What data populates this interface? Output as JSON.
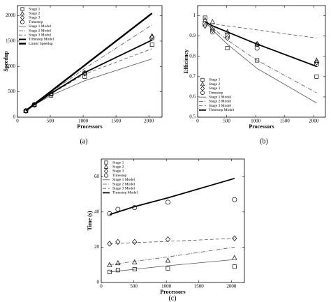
{
  "chart_data": [
    {
      "type": "line",
      "caption": "(a)",
      "x_label": "Processors",
      "y_label": "Speedup",
      "x": [
        128,
        256,
        512,
        1024,
        2048
      ],
      "xlim": [
        0,
        2200
      ],
      "xticks": [
        0,
        500,
        1000,
        1500,
        2000
      ],
      "ylim": [
        0,
        2200
      ],
      "yticks": [
        0,
        500,
        1000,
        1500,
        2000
      ],
      "legend": "upper left",
      "series": [
        {
          "name": "Stage 1",
          "color": "#000000",
          "marker": "square",
          "values": [
            125,
            240,
            430,
            800,
            1430
          ]
        },
        {
          "name": "Stage 2",
          "color": "#000000",
          "marker": "triangle",
          "values": [
            128,
            250,
            470,
            870,
            1600
          ]
        },
        {
          "name": "Stage 3",
          "color": "#000000",
          "marker": "diamond",
          "values": [
            126,
            245,
            460,
            860,
            1580
          ]
        },
        {
          "name": "Timestep",
          "color": "#000000",
          "marker": "circle",
          "values": [
            125,
            245,
            460,
            870,
            1560
          ]
        },
        {
          "name": "Stage 1 Model",
          "color": "#555555",
          "line": "solid",
          "linewidth": 0.8,
          "values": [
            125,
            240,
            430,
            720,
            1150
          ]
        },
        {
          "name": "Stage 2 Model",
          "color": "#555555",
          "line": "dashdot",
          "linewidth": 0.8,
          "values": [
            127,
            252,
            490,
            960,
            1820
          ]
        },
        {
          "name": "Stage 3 Model",
          "color": "#555555",
          "line": "dashed",
          "linewidth": 0.8,
          "values": [
            126,
            246,
            460,
            850,
            1350
          ]
        },
        {
          "name": "Timestep Model",
          "color": "#000000",
          "line": "solid",
          "linewidth": 1.8,
          "values": [
            125,
            244,
            470,
            880,
            1520
          ]
        },
        {
          "name": "Linear Speedup",
          "color": "#000000",
          "line": "solid",
          "linewidth": 2.4,
          "values": [
            128,
            256,
            512,
            1024,
            2048
          ]
        }
      ]
    },
    {
      "type": "line",
      "caption": "(b)",
      "x_label": "Processors",
      "y_label": "Efficiency",
      "x": [
        128,
        256,
        512,
        1024,
        2048
      ],
      "xlim": [
        0,
        2200
      ],
      "xticks": [
        0,
        500,
        1000,
        1500,
        2000
      ],
      "ylim": [
        0.5,
        1.05
      ],
      "yticks": [
        0.5,
        0.6,
        0.7,
        0.8,
        0.9,
        1
      ],
      "legend": "lower left",
      "series": [
        {
          "name": "Stage 1",
          "color": "#000000",
          "marker": "square",
          "values": [
            0.99,
            0.94,
            0.84,
            0.78,
            0.7
          ]
        },
        {
          "name": "Stage 2",
          "color": "#000000",
          "marker": "triangle",
          "values": [
            0.98,
            0.97,
            0.92,
            0.86,
            0.78
          ]
        },
        {
          "name": "Stage 3",
          "color": "#000000",
          "marker": "diamond",
          "values": [
            0.95,
            0.93,
            0.89,
            0.86,
            0.77
          ]
        },
        {
          "name": "Timestep",
          "color": "#000000",
          "marker": "circle",
          "values": [
            0.96,
            0.92,
            0.9,
            0.84,
            0.76
          ]
        },
        {
          "name": "Stage 1 Model",
          "color": "#555555",
          "line": "solid",
          "linewidth": 0.8,
          "values": [
            0.97,
            0.93,
            0.86,
            0.74,
            0.57
          ]
        },
        {
          "name": "Stage 2 Model",
          "color": "#555555",
          "line": "dashdot",
          "linewidth": 0.8,
          "values": [
            0.97,
            0.94,
            0.88,
            0.78,
            0.62
          ]
        },
        {
          "name": "Stage 3 Model",
          "color": "#555555",
          "line": "dashed",
          "linewidth": 0.8,
          "values": [
            0.97,
            0.96,
            0.95,
            0.93,
            0.89
          ]
        },
        {
          "name": "Timestep Model",
          "color": "#000000",
          "line": "solid",
          "linewidth": 1.8,
          "values": [
            0.97,
            0.95,
            0.92,
            0.86,
            0.75
          ]
        }
      ]
    },
    {
      "type": "line",
      "caption": "(c)",
      "x_label": "Processors",
      "y_label": "Time (s)",
      "x": [
        128,
        256,
        512,
        1024,
        2048
      ],
      "xlim": [
        0,
        2200
      ],
      "xticks": [
        0,
        500,
        1000,
        1500,
        2000
      ],
      "ylim": [
        0,
        70
      ],
      "yticks": [
        0,
        20,
        40,
        60
      ],
      "legend": "upper left",
      "series": [
        {
          "name": "Stage 1",
          "color": "#000000",
          "marker": "square",
          "values": [
            6,
            7,
            7.5,
            8,
            9
          ]
        },
        {
          "name": "Stage 2",
          "color": "#000000",
          "marker": "triangle",
          "values": [
            10,
            11,
            11.5,
            12.5,
            14
          ]
        },
        {
          "name": "Stage 3",
          "color": "#000000",
          "marker": "diamond",
          "values": [
            22,
            23,
            23,
            24.5,
            25
          ]
        },
        {
          "name": "Timestep",
          "color": "#000000",
          "marker": "circle",
          "values": [
            39,
            41.5,
            42.5,
            45.5,
            47
          ]
        },
        {
          "name": "Stage 1 Model",
          "color": "#555555",
          "line": "solid",
          "linewidth": 0.8,
          "values": [
            6,
            6.5,
            7.5,
            9.5,
            13
          ]
        },
        {
          "name": "Stage 2 Model",
          "color": "#555555",
          "line": "dashdot",
          "linewidth": 0.8,
          "values": [
            10,
            10.7,
            12,
            14.5,
            20
          ]
        },
        {
          "name": "Stage 3 Model",
          "color": "#555555",
          "line": "dashed",
          "linewidth": 0.8,
          "values": [
            22,
            22.2,
            22.6,
            23.3,
            25
          ]
        },
        {
          "name": "Timestep Model",
          "color": "#000000",
          "line": "solid",
          "linewidth": 1.8,
          "values": [
            38.5,
            40,
            43,
            48,
            59
          ]
        }
      ]
    }
  ]
}
